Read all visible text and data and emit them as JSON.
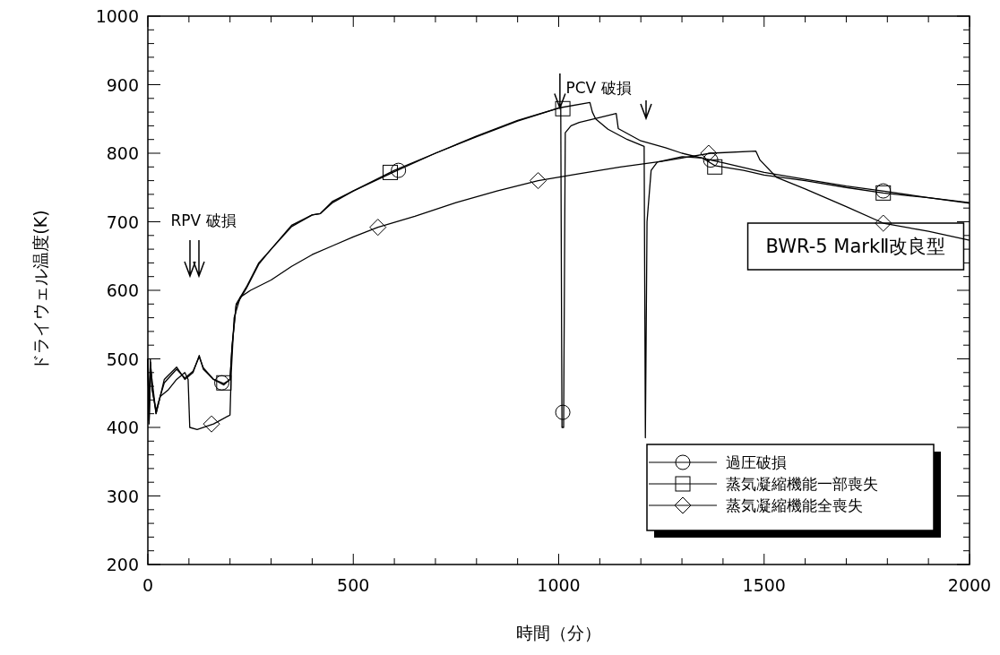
{
  "chart_data": {
    "type": "line",
    "xlabel": "時間（分）",
    "ylabel": "ドライウェル温度(K)",
    "xlim": [
      0,
      2000
    ],
    "ylim": [
      200,
      1000
    ],
    "xticks": [
      0,
      {
        "value": 100,
        "label": null
      },
      {
        "value": 200,
        "label": null
      },
      {
        "value": 300,
        "label": null
      },
      {
        "value": 400,
        "label": null
      },
      500,
      {
        "value": 600,
        "label": null
      },
      {
        "value": 700,
        "label": null
      },
      {
        "value": 800,
        "label": null
      },
      {
        "value": 900,
        "label": null
      },
      1000,
      {
        "value": 1100,
        "label": null
      },
      {
        "value": 1200,
        "label": null
      },
      {
        "value": 1300,
        "label": null
      },
      {
        "value": 1400,
        "label": null
      },
      1500,
      {
        "value": 1600,
        "label": null
      },
      {
        "value": 1700,
        "label": null
      },
      {
        "value": 1800,
        "label": null
      },
      {
        "value": 1900,
        "label": null
      },
      2000
    ],
    "yticks": [
      200,
      {
        "value": 220,
        "label": null
      },
      {
        "value": 240,
        "label": null
      },
      {
        "value": 260,
        "label": null
      },
      {
        "value": 280,
        "label": null
      },
      300,
      {
        "value": 320,
        "label": null
      },
      {
        "value": 340,
        "label": null
      },
      {
        "value": 360,
        "label": null
      },
      {
        "value": 380,
        "label": null
      },
      400,
      {
        "value": 420,
        "label": null
      },
      {
        "value": 440,
        "label": null
      },
      {
        "value": 460,
        "label": null
      },
      {
        "value": 480,
        "label": null
      },
      500,
      {
        "value": 520,
        "label": null
      },
      {
        "value": 540,
        "label": null
      },
      {
        "value": 560,
        "label": null
      },
      {
        "value": 580,
        "label": null
      },
      600,
      {
        "value": 620,
        "label": null
      },
      {
        "value": 640,
        "label": null
      },
      {
        "value": 660,
        "label": null
      },
      {
        "value": 680,
        "label": null
      },
      700,
      {
        "value": 720,
        "label": null
      },
      {
        "value": 740,
        "label": null
      },
      {
        "value": 760,
        "label": null
      },
      {
        "value": 780,
        "label": null
      },
      800,
      {
        "value": 820,
        "label": null
      },
      {
        "value": 840,
        "label": null
      },
      {
        "value": 860,
        "label": null
      },
      {
        "value": 880,
        "label": null
      },
      900,
      {
        "value": 920,
        "label": null
      },
      {
        "value": 940,
        "label": null
      },
      {
        "value": 960,
        "label": null
      },
      {
        "value": 980,
        "label": null
      },
      1000
    ],
    "legend": "bottom right",
    "series": [
      {
        "color": "#000000",
        "line_style": "solid",
        "x": [
          0,
          3,
          6,
          10,
          20,
          40,
          70,
          90,
          110,
          125,
          135,
          160,
          185,
          200,
          205,
          215,
          240,
          270,
          300,
          350,
          400,
          420,
          450,
          500,
          600,
          700,
          800,
          900,
          1000,
          1005,
          1008,
          1012,
          1016,
          1030,
          1050,
          1100,
          1140,
          1145,
          1200,
          1260,
          1300,
          1370,
          1400,
          1500,
          1600,
          1700,
          1800,
          1900,
          2000
        ],
        "values": [
          500,
          410,
          500,
          460,
          420,
          470,
          488,
          470,
          480,
          505,
          485,
          470,
          462,
          470,
          520,
          580,
          605,
          640,
          660,
          695,
          710,
          712,
          730,
          745,
          775,
          800,
          825,
          848,
          866,
          868,
          400,
          400,
          830,
          840,
          845,
          852,
          858,
          836,
          818,
          808,
          800,
          790,
          786,
          772,
          762,
          752,
          744,
          735,
          727
        ]
      },
      {
        "color": "#000000",
        "line_style": "solid",
        "x": [
          0,
          3,
          6,
          10,
          20,
          40,
          70,
          90,
          110,
          125,
          135,
          160,
          185,
          200,
          205,
          215,
          240,
          270,
          300,
          350,
          400,
          420,
          450,
          500,
          600,
          700,
          800,
          900,
          1000,
          1076,
          1082,
          1090,
          1120,
          1167,
          1208,
          1211,
          1215,
          1225,
          1240,
          1300,
          1350,
          1380,
          1450,
          1500,
          1600,
          1700,
          1790,
          1900,
          2000
        ],
        "values": [
          500,
          410,
          495,
          455,
          425,
          465,
          485,
          472,
          482,
          503,
          487,
          470,
          464,
          470,
          518,
          578,
          603,
          638,
          660,
          693,
          710,
          712,
          728,
          745,
          773,
          800,
          824,
          847,
          866,
          874,
          860,
          850,
          835,
          820,
          810,
          385,
          700,
          775,
          787,
          795,
          793,
          782,
          775,
          768,
          760,
          750,
          742,
          735,
          728
        ]
      },
      {
        "color": "#000000",
        "line_style": "solid",
        "x": [
          0,
          3,
          6,
          10,
          20,
          30,
          50,
          70,
          90,
          98,
          102,
          120,
          160,
          200,
          203,
          210,
          225,
          250,
          300,
          350,
          400,
          450,
          500,
          560,
          650,
          750,
          850,
          950,
          1050,
          1150,
          1250,
          1300,
          1370,
          1480,
          1490,
          1530,
          1600,
          1700,
          1790,
          1900,
          2000
        ],
        "values": [
          500,
          405,
          495,
          470,
          420,
          445,
          455,
          470,
          480,
          470,
          400,
          397,
          405,
          418,
          480,
          560,
          590,
          600,
          615,
          635,
          652,
          665,
          678,
          692,
          708,
          728,
          745,
          760,
          770,
          780,
          788,
          793,
          800,
          803,
          790,
          765,
          748,
          722,
          698,
          686,
          673
        ]
      },
      {
        "name": "過圧破損",
        "type": "scatter",
        "color": "#000000",
        "marker": "circle",
        "x": [
          180,
          610,
          1010,
          1370,
          1790
        ],
        "values": [
          465,
          775,
          422,
          790,
          745
        ]
      },
      {
        "name": "蒸気凝縮機能一部喪失",
        "type": "scatter",
        "color": "#000000",
        "marker": "square",
        "x": [
          185,
          590,
          1010,
          1380,
          1790
        ],
        "values": [
          465,
          772,
          865,
          780,
          742
        ]
      },
      {
        "name": "蒸気凝縮機能全喪失",
        "type": "scatter",
        "color": "#000000",
        "marker": "diamond",
        "x": [
          155,
          560,
          950,
          1365,
          1790
        ],
        "values": [
          405,
          692,
          760,
          800,
          698
        ]
      }
    ],
    "annotations": [
      "RPV 破損",
      {
        "text": "PCV 破損",
        "x": 1003,
        "y": 866
      },
      "BWR-5 MarkⅡ改良型"
    ]
  }
}
